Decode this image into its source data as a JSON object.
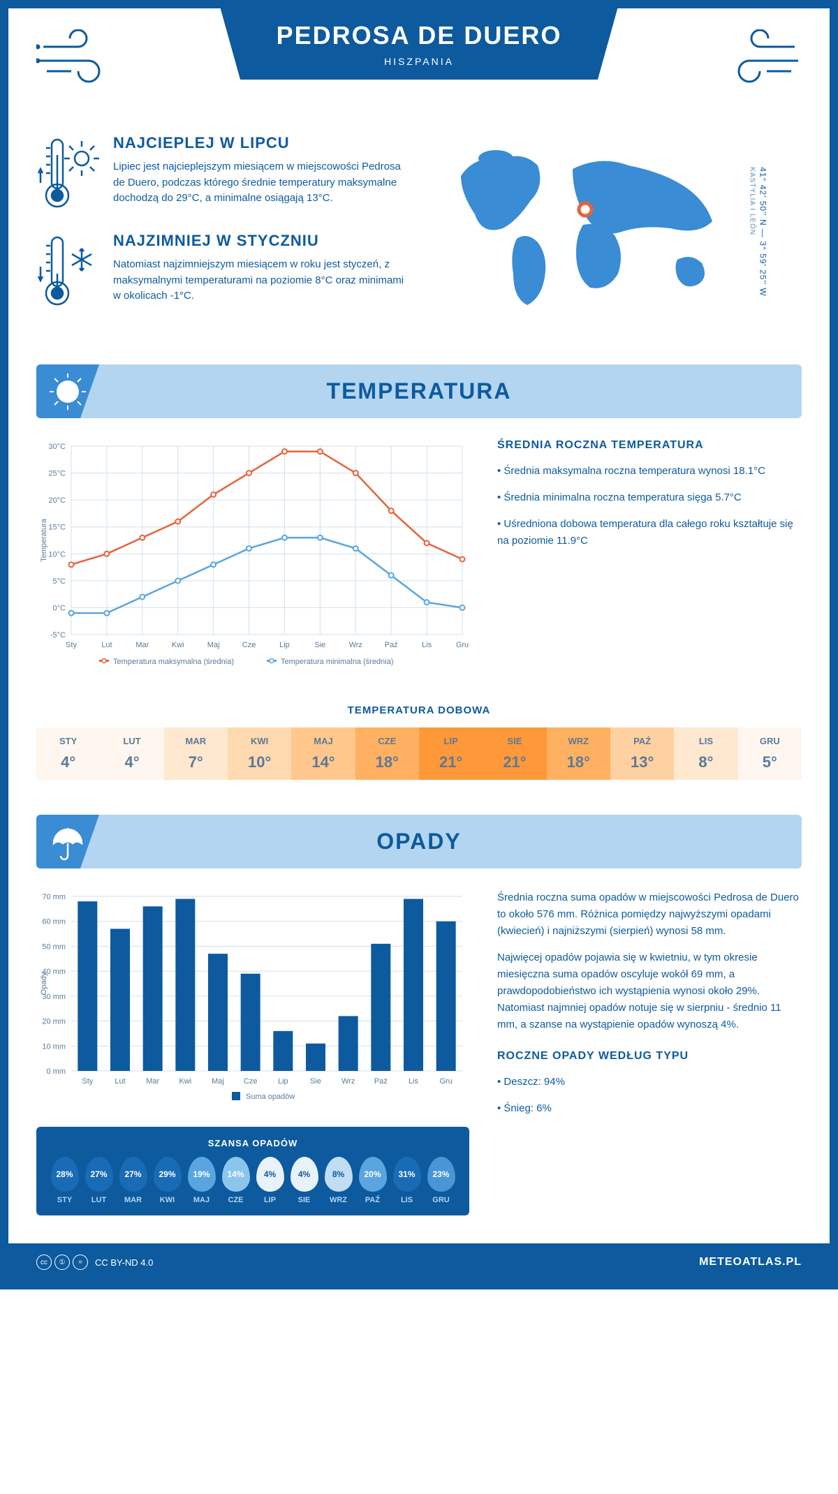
{
  "header": {
    "title": "PEDROSA DE DUERO",
    "country": "HISZPANIA"
  },
  "coords": {
    "lat": "41° 42' 50'' N — 3° 59' 25'' W",
    "region": "KASTYLIA I LEÓN"
  },
  "facts": {
    "hot": {
      "title": "NAJCIEPLEJ W LIPCU",
      "body": "Lipiec jest najcieplejszym miesiącem w miejscowości Pedrosa de Duero, podczas którego średnie temperatury maksymalne dochodzą do 29°C, a minimalne osiągają 13°C."
    },
    "cold": {
      "title": "NAJZIMNIEJ W STYCZNIU",
      "body": "Natomiast najzimniejszym miesiącem w roku jest styczeń, z maksymalnymi temperaturami na poziomie 8°C oraz minimami w okolicach -1°C."
    }
  },
  "temp": {
    "section": "TEMPERATURA",
    "chart": {
      "months": [
        "Sty",
        "Lut",
        "Mar",
        "Kwi",
        "Maj",
        "Cze",
        "Lip",
        "Sie",
        "Wrz",
        "Paź",
        "Lis",
        "Gru"
      ],
      "max": [
        8,
        10,
        13,
        16,
        21,
        25,
        29,
        29,
        25,
        18,
        12,
        9
      ],
      "min": [
        -1,
        -1,
        2,
        5,
        8,
        11,
        13,
        13,
        11,
        6,
        1,
        0
      ],
      "ylabel": "Temperatura",
      "ylim": [
        -5,
        30
      ],
      "ytick_step": 5,
      "max_color": "#e8623a",
      "min_color": "#5aa5e0",
      "grid_color": "#d0e0ef",
      "bg": "#ffffff",
      "legend": {
        "max": "Temperatura maksymalna (średnia)",
        "min": "Temperatura minimalna (średnia)"
      }
    },
    "side": {
      "title": "ŚREDNIA ROCZNA TEMPERATURA",
      "b1": "• Średnia maksymalna roczna temperatura wynosi 18.1°C",
      "b2": "• Średnia minimalna roczna temperatura sięga 5.7°C",
      "b3": "• Uśredniona dobowa temperatura dla całego roku kształtuje się na poziomie 11.9°C"
    },
    "daily": {
      "title": "TEMPERATURA DOBOWA",
      "months": [
        "STY",
        "LUT",
        "MAR",
        "KWI",
        "MAJ",
        "CZE",
        "LIP",
        "SIE",
        "WRZ",
        "PAŹ",
        "LIS",
        "GRU"
      ],
      "vals": [
        "4°",
        "4°",
        "7°",
        "10°",
        "14°",
        "18°",
        "21°",
        "21°",
        "18°",
        "13°",
        "8°",
        "5°"
      ],
      "colors": [
        "#fff7ef",
        "#fff7ef",
        "#ffe8d0",
        "#ffd9b0",
        "#ffc78c",
        "#ffb060",
        "#ff9838",
        "#ff9838",
        "#ffb060",
        "#ffd0a0",
        "#ffe8d0",
        "#fff7ef"
      ]
    }
  },
  "precip": {
    "section": "OPADY",
    "chart": {
      "months": [
        "Sty",
        "Lut",
        "Mar",
        "Kwi",
        "Maj",
        "Cze",
        "Lip",
        "Sie",
        "Wrz",
        "Paź",
        "Lis",
        "Gru"
      ],
      "vals": [
        68,
        57,
        66,
        69,
        47,
        39,
        16,
        11,
        22,
        51,
        69,
        60
      ],
      "ylabel": "Opady",
      "ylim": [
        0,
        70
      ],
      "ytick_step": 10,
      "bar_color": "#0d5a9e",
      "grid_color": "#d0e0ef",
      "legend": "Suma opadów"
    },
    "side": {
      "p1": "Średnia roczna suma opadów w miejscowości Pedrosa de Duero to około 576 mm. Różnica pomiędzy najwyższymi opadami (kwiecień) i najniższymi (sierpień) wynosi 58 mm.",
      "p2": "Najwięcej opadów pojawia się w kwietniu, w tym okresie miesięczna suma opadów oscyluje wokół 69 mm, a prawdopodobieństwo ich wystąpienia wynosi około 29%. Natomiast najmniej opadów notuje się w sierpniu - średnio 11 mm, a szanse na wystąpienie opadów wynoszą 4%.",
      "type_title": "ROCZNE OPADY WEDŁUG TYPU",
      "t1": "• Deszcz: 94%",
      "t2": "• Śnieg: 6%"
    },
    "chance": {
      "title": "SZANSA OPADÓW",
      "months": [
        "STY",
        "LUT",
        "MAR",
        "KWI",
        "MAJ",
        "CZE",
        "LIP",
        "SIE",
        "WRZ",
        "PAŹ",
        "LIS",
        "GRU"
      ],
      "vals": [
        "28%",
        "27%",
        "27%",
        "29%",
        "19%",
        "14%",
        "4%",
        "4%",
        "8%",
        "20%",
        "31%",
        "23%"
      ],
      "colors": [
        "#1a6bb5",
        "#1a6bb5",
        "#1a6bb5",
        "#1a6bb5",
        "#5aa5e0",
        "#8cc5ec",
        "#e8f2fa",
        "#e8f2fa",
        "#c0ddf2",
        "#5aa5e0",
        "#1a6bb5",
        "#4a95d5"
      ],
      "text_colors": [
        "#fff",
        "#fff",
        "#fff",
        "#fff",
        "#fff",
        "#fff",
        "#0d5a9e",
        "#0d5a9e",
        "#0d5a9e",
        "#fff",
        "#fff",
        "#fff"
      ]
    }
  },
  "footer": {
    "lic": "CC BY-ND 4.0",
    "site": "METEOATLAS.PL"
  }
}
